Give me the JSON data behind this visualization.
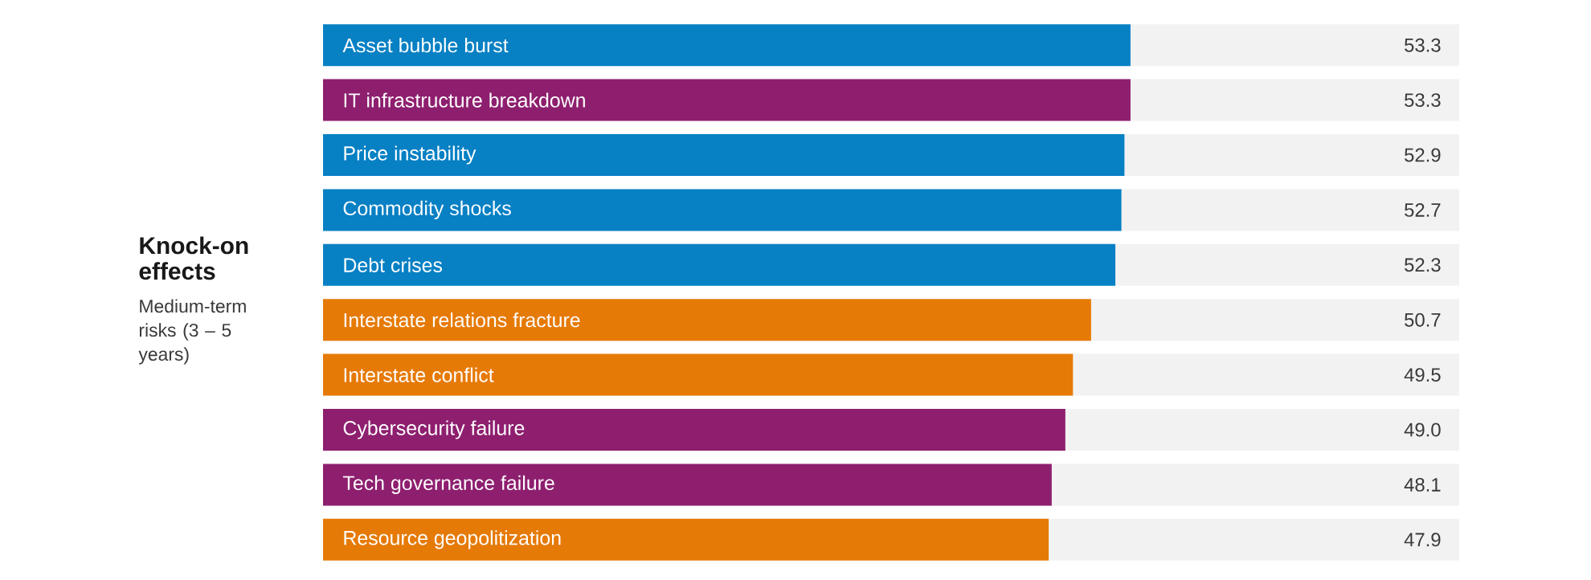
{
  "chart_data": {
    "type": "bar",
    "orientation": "horizontal",
    "title": "Knock-on effects",
    "subtitle": "Medium-term risks (3 – 5 years)",
    "categories": [
      "Asset bubble burst",
      "IT infrastructure breakdown",
      "Price instability",
      "Commodity shocks",
      "Debt crises",
      "Interstate relations fracture",
      "Interstate conflict",
      "Cybersecurity failure",
      "Tech governance failure",
      "Resource geopolitization"
    ],
    "values": [
      53.3,
      53.3,
      52.9,
      52.7,
      52.3,
      50.7,
      49.5,
      49.0,
      48.1,
      47.9
    ],
    "colors": [
      "#0780c4",
      "#8e1f6f",
      "#0780c4",
      "#0780c4",
      "#0780c4",
      "#e67a07",
      "#e67a07",
      "#8e1f6f",
      "#8e1f6f",
      "#e67a07"
    ],
    "value_labels": [
      "53.3",
      "53.3",
      "52.9",
      "52.7",
      "52.3",
      "50.7",
      "49.5",
      "49.0",
      "48.1",
      "47.9"
    ],
    "xlim": [
      0,
      75
    ]
  }
}
